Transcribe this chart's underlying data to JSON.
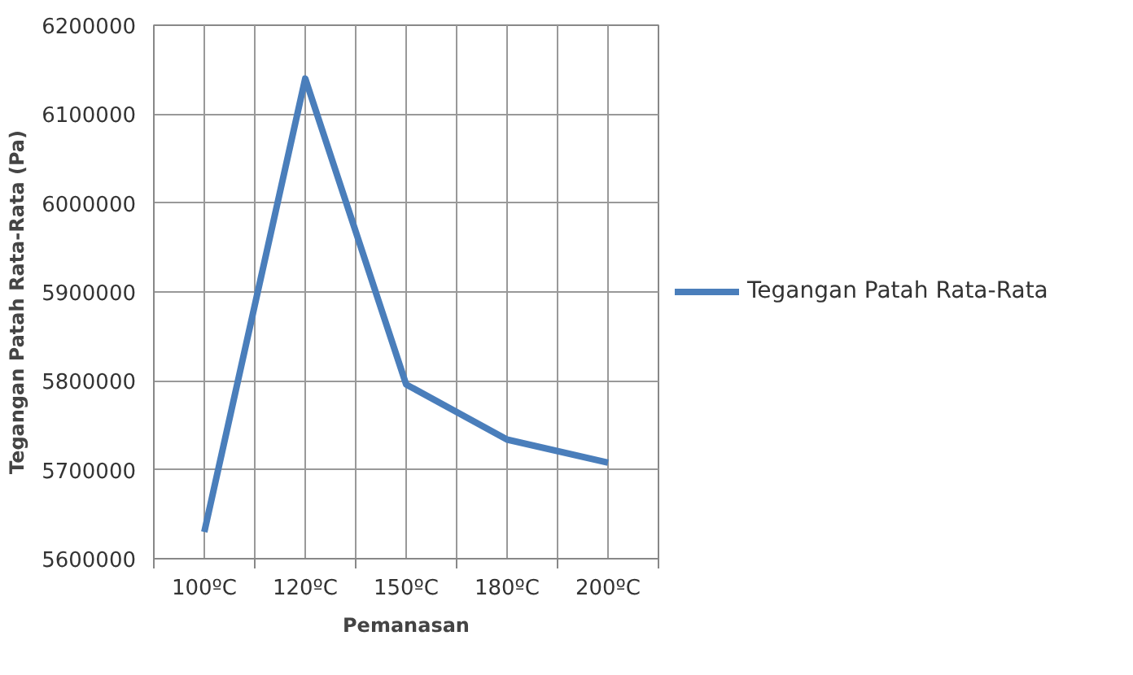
{
  "chart_data": {
    "type": "line",
    "xlabel": "Pemanasan",
    "ylabel": "Tegangan  Patah  Rata-Rata  (Pa)",
    "categories": [
      "100ºC",
      "120ºC",
      "150ºC",
      "180ºC",
      "200ºC"
    ],
    "series": [
      {
        "name": "Tegangan Patah Rata-Rata",
        "color": "#4a7ebb",
        "values": [
          5630000,
          6140000,
          5796000,
          5734000,
          5708000
        ]
      }
    ],
    "ylim": [
      5600000,
      6200000
    ],
    "yticks": [
      5600000,
      5700000,
      5800000,
      5900000,
      6000000,
      6100000,
      6200000
    ],
    "grid": true,
    "legend": "right",
    "marker": "none",
    "line_style": "solid"
  }
}
